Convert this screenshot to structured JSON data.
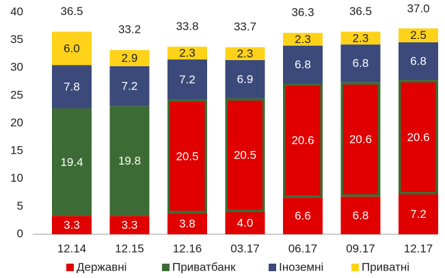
{
  "chart_data": {
    "type": "stacked_bar",
    "categories": [
      "12.14",
      "12.15",
      "12.16",
      "03.17",
      "06.17",
      "09.17",
      "12.17"
    ],
    "series": [
      {
        "name": "Державні",
        "color": "#e00000",
        "label_color": "#ffffff",
        "values": [
          3.3,
          3.3,
          3.8,
          4.0,
          6.6,
          6.8,
          7.2
        ],
        "value_labels": [
          "3.3",
          "3.3",
          "3.8",
          "4.0",
          "6.6",
          "6.8",
          "7.2"
        ]
      },
      {
        "name": "Приватбанк",
        "color": "#3d6b35",
        "label_color": "#ffffff",
        "point_colors": [
          "#3d6b35",
          "#3d6b35",
          "#e00000",
          "#e00000",
          "#e00000",
          "#e00000",
          "#e00000"
        ],
        "border_color": "#3d6b35",
        "values": [
          19.4,
          19.8,
          20.5,
          20.5,
          20.6,
          20.6,
          20.6
        ],
        "value_labels": [
          "19.4",
          "19.8",
          "20.5",
          "20.5",
          "20.6",
          "20.6",
          "20.6"
        ]
      },
      {
        "name": "Іноземні",
        "color": "#3b4a7a",
        "label_color": "#ffffff",
        "values": [
          7.8,
          7.2,
          7.2,
          6.9,
          6.8,
          6.8,
          6.8
        ],
        "value_labels": [
          "7.8",
          "7.2",
          "7.2",
          "6.9",
          "6.8",
          "6.8",
          "6.8"
        ]
      },
      {
        "name": "Приватні",
        "color": "#ffd21a",
        "label_color": "#222222",
        "values": [
          6.0,
          2.9,
          2.3,
          2.3,
          2.3,
          2.3,
          2.5
        ],
        "value_labels": [
          "6.0",
          "2.9",
          "2.3",
          "2.3",
          "2.3",
          "2.3",
          "2.5"
        ]
      }
    ],
    "totals": {
      "values": [
        36.5,
        33.2,
        33.8,
        33.7,
        36.3,
        36.5,
        37.0
      ],
      "value_labels": [
        "36.5",
        "33.2",
        "33.8",
        "33.7",
        "36.3",
        "36.5",
        "37.0"
      ]
    },
    "ylim": [
      0,
      40
    ],
    "yticks": [
      0,
      5,
      10,
      15,
      20,
      25,
      30,
      35,
      40
    ],
    "grid": false,
    "legend": "bottom"
  }
}
